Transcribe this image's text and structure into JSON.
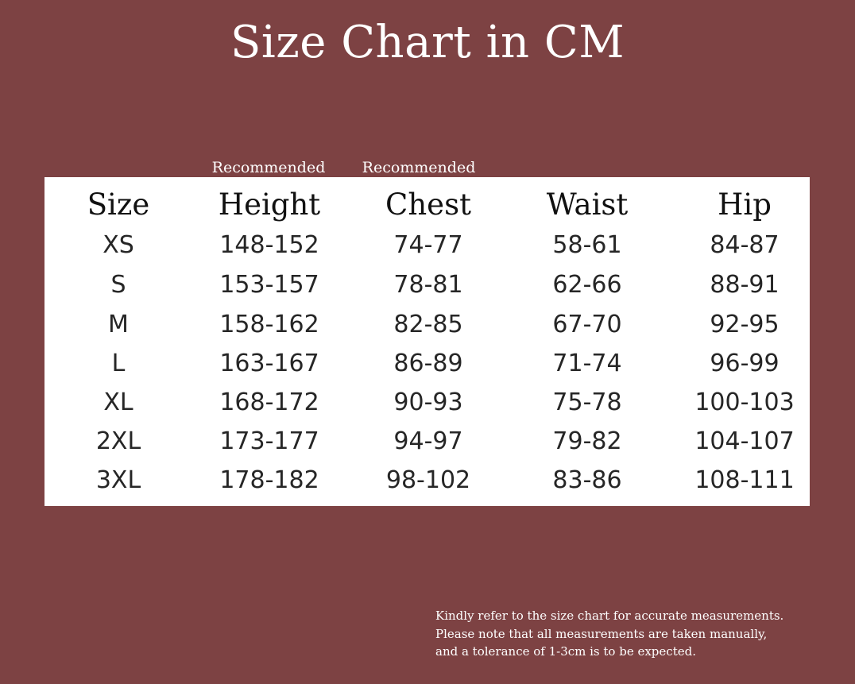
{
  "title": "Size Chart in CM",
  "superlabels": {
    "height": "Recommended",
    "chest": "Recommended"
  },
  "table": {
    "headers": [
      "Size",
      "Height",
      "Chest",
      "Waist",
      "Hip"
    ],
    "rows": [
      [
        "XS",
        "148-152",
        "74-77",
        "58-61",
        "84-87"
      ],
      [
        "S",
        "153-157",
        "78-81",
        "62-66",
        "88-91"
      ],
      [
        "M",
        "158-162",
        "82-85",
        "67-70",
        "92-95"
      ],
      [
        "L",
        "163-167",
        "86-89",
        "71-74",
        "96-99"
      ],
      [
        "XL",
        "168-172",
        "90-93",
        "75-78",
        "100-103"
      ],
      [
        "2XL",
        "173-177",
        "94-97",
        "79-82",
        "104-107"
      ],
      [
        "3XL",
        "178-182",
        "98-102",
        "83-86",
        "108-111"
      ]
    ]
  },
  "note": {
    "line1": "Kindly refer to the size chart for accurate measurements.",
    "line2": "Please note that all measurements are taken manually,",
    "line3": "and a tolerance of 1-3cm is to be expected."
  },
  "colors": {
    "background": "#7d4243",
    "table_background": "#ffffff",
    "text_light": "#ffffff",
    "text_dark": "#1e1e1e"
  }
}
